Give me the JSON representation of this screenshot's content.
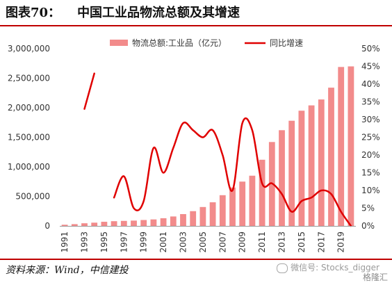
{
  "header": {
    "figure_label": "图表70：",
    "title": "中国工业品物流总额及其增速"
  },
  "footer": {
    "source": "资料来源：Wind，中信建投",
    "watermark": "微信号: Stocks_digger",
    "logo_text": "格隆汇"
  },
  "chart_data": {
    "type": "bar",
    "categories": [
      "1991",
      "1992",
      "1993",
      "1994",
      "1995",
      "1996",
      "1997",
      "1998",
      "1999",
      "2000",
      "2001",
      "2002",
      "2003",
      "2004",
      "2005",
      "2006",
      "2007",
      "2008",
      "2009",
      "2010",
      "2011",
      "2012",
      "2013",
      "2014",
      "2015",
      "2016",
      "2017",
      "2018",
      "2019",
      "2020"
    ],
    "x_tick_labels": [
      "1991",
      "1993",
      "1995",
      "1997",
      "1999",
      "2001",
      "2003",
      "2005",
      "2007",
      "2009",
      "2011",
      "2013",
      "2015",
      "2017",
      "2019"
    ],
    "series": [
      {
        "name": "物流总额:工业品（亿元）",
        "kind": "bar",
        "axis": "left",
        "color": "#f28b8b",
        "values": [
          20000,
          30000,
          45000,
          55000,
          70000,
          80000,
          85000,
          90000,
          100000,
          110000,
          130000,
          160000,
          200000,
          250000,
          320000,
          400000,
          520000,
          650000,
          750000,
          850000,
          1120000,
          1420000,
          1620000,
          1780000,
          1950000,
          2040000,
          2140000,
          2340000,
          2690000,
          2700000
        ]
      },
      {
        "name": "同比增速",
        "kind": "line",
        "axis": "right",
        "color": "#e00000",
        "values": [
          null,
          null,
          33,
          43,
          null,
          8,
          14,
          5,
          7,
          22,
          15,
          22,
          29,
          27,
          25,
          27,
          20,
          10,
          29,
          27,
          12,
          12,
          9,
          4,
          7,
          8,
          10,
          9,
          4,
          0
        ]
      }
    ],
    "y_left": {
      "min": 0,
      "max": 3000000,
      "ticks": [
        0,
        500000,
        1000000,
        1500000,
        2000000,
        2500000,
        3000000
      ],
      "tick_labels": [
        "0",
        "500,000",
        "1,000,000",
        "1,500,000",
        "2,000,000",
        "2,500,000",
        "3,000,000"
      ]
    },
    "y_right": {
      "min": 0,
      "max": 50,
      "ticks": [
        0,
        5,
        10,
        15,
        20,
        25,
        30,
        35,
        40,
        45,
        50
      ],
      "tick_labels": [
        "0%",
        "5%",
        "10%",
        "15%",
        "20%",
        "25%",
        "30%",
        "35%",
        "40%",
        "45%",
        "50%"
      ]
    },
    "legend_placement": "top-center",
    "grid": false
  }
}
